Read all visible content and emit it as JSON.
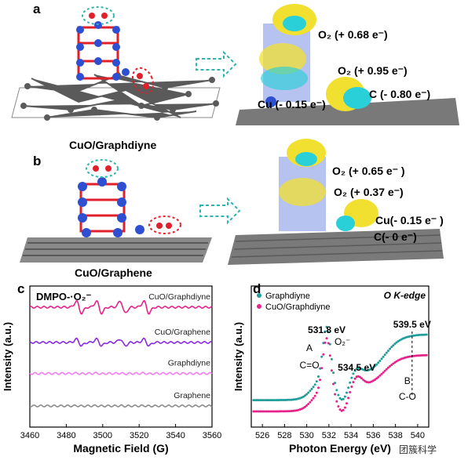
{
  "panels": {
    "a": {
      "label": "a",
      "caption": "CuO/Graphdiyne",
      "annotations": [
        "O₂ (+ 0.68 e⁻)",
        "O₂ (+ 0.95 e⁻)",
        "C (- 0.80 e⁻)",
        "Cu (- 0.15 e⁻)"
      ]
    },
    "b": {
      "label": "b",
      "caption": "CuO/Graphene",
      "annotations": [
        "O₂ (+ 0.65 e⁻ )",
        "O₂ (+ 0.37 e⁻)",
        "Cu(- 0.15 e⁻ )",
        "C(- 0 e⁻)"
      ]
    },
    "c": {
      "label": "c",
      "title": "DMPO-·O₂⁻"
    },
    "d": {
      "label": "d",
      "edge": "O K-edge"
    }
  },
  "chart_data": [
    {
      "type": "line",
      "panel": "c",
      "title": "DMPO-·O₂⁻",
      "xlabel": "Magnetic Field (G)",
      "ylabel": "Intensity (a.u.)",
      "xlim": [
        3460,
        3560
      ],
      "xticks": [
        3460,
        3480,
        3500,
        3520,
        3540,
        3560
      ],
      "series": [
        {
          "name": "CuO/Graphdiyne",
          "color": "#e6238a",
          "offset": 0.85,
          "amp": 1.0
        },
        {
          "name": "CuO/Graphene",
          "color": "#8a2be2",
          "offset": 0.6,
          "amp": 0.55
        },
        {
          "name": "Graphdiyne",
          "color": "#f07ff0",
          "offset": 0.38,
          "amp": 0.05
        },
        {
          "name": "Graphene",
          "color": "#8c8c8c",
          "offset": 0.15,
          "amp": 0.03
        }
      ],
      "peak_fields": [
        3487,
        3498,
        3511,
        3524
      ]
    },
    {
      "type": "scatter",
      "panel": "d",
      "xlabel": "Photon Energy (eV)",
      "ylabel": "Intensity (a.u.)",
      "xlim": [
        525,
        541
      ],
      "xticks": [
        526,
        528,
        530,
        532,
        534,
        536,
        538,
        540
      ],
      "legend": "top-left",
      "series": [
        {
          "name": "Graphdiyne",
          "color": "#1f9e9a"
        },
        {
          "name": "CuO/Graphdiyne",
          "color": "#e6238a"
        }
      ],
      "annotations": [
        {
          "text": "531.8 eV",
          "x": 531.8
        },
        {
          "text": "534.5 eV",
          "x": 534.5
        },
        {
          "text": "539.5 eV",
          "x": 539.5
        },
        {
          "text": "A",
          "x": 531.8
        },
        {
          "text": "B",
          "x": 539.5
        },
        {
          "text": "C=O",
          "x": 531.8
        },
        {
          "text": "O₂⁻",
          "x": 534.5
        },
        {
          "text": "C-O",
          "x": 539.5
        }
      ]
    }
  ],
  "watermark": "团簇科学",
  "colors": {
    "oxygen": "#e0202a",
    "copper": "#2e4fd1",
    "carbon": "#5a5a5a",
    "arrow": "#2bb5b0",
    "charge_yellow": "#f2e030",
    "charge_cyan": "#2ad0d8"
  }
}
